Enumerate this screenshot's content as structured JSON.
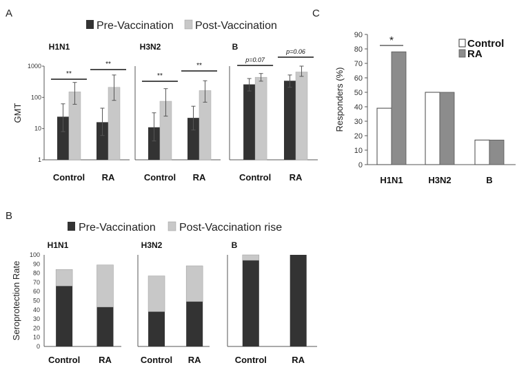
{
  "panels": {
    "a": "A",
    "b": "B",
    "c": "C"
  },
  "legend_a": {
    "pre": "Pre-Vaccination",
    "post": "Post-Vaccination"
  },
  "legend_b": {
    "pre": "Pre-Vaccination",
    "post": "Post-Vaccination rise"
  },
  "legend_c": {
    "control": "Control",
    "ra": "RA"
  },
  "colors": {
    "dark": "#333333",
    "light": "#c8c8c8",
    "white": "#ffffff",
    "gray": "#8c8c8c"
  },
  "chart_data": [
    {
      "id": "A",
      "type": "bar",
      "log_scale": true,
      "ylabel": "GMT",
      "ylim": [
        1,
        1000
      ],
      "yticks": [
        "1",
        "10",
        "100",
        "1000"
      ],
      "series_names": [
        "Pre-Vaccination",
        "Post-Vaccination"
      ],
      "groups": [
        {
          "title": "H1N1",
          "categories": [
            "Control",
            "RA"
          ],
          "pre": [
            24,
            16
          ],
          "pre_err": [
            [
              8,
              62
            ],
            [
              6,
              45
            ]
          ],
          "post": [
            150,
            210
          ],
          "post_err": [
            [
              60,
              300
            ],
            [
              80,
              520
            ]
          ],
          "annotations": [
            {
              "cat": 0,
              "text": "**"
            },
            {
              "cat": 1,
              "text": "**"
            }
          ]
        },
        {
          "title": "H3N2",
          "categories": [
            "Control",
            "RA"
          ],
          "pre": [
            11,
            22
          ],
          "pre_err": [
            [
              4,
              32
            ],
            [
              9,
              52
            ]
          ],
          "post": [
            75,
            165
          ],
          "post_err": [
            [
              25,
              190
            ],
            [
              70,
              340
            ]
          ],
          "annotations": [
            {
              "cat": 0,
              "text": "**"
            },
            {
              "cat": 1,
              "text": "**"
            }
          ]
        },
        {
          "title": "B",
          "categories": [
            "Control",
            "RA"
          ],
          "pre": [
            260,
            340
          ],
          "pre_err": [
            [
              160,
              400
            ],
            [
              210,
              520
            ]
          ],
          "post": [
            440,
            650
          ],
          "post_err": [
            [
              330,
              580
            ],
            [
              470,
              1000
            ]
          ],
          "annotations": [
            {
              "cat": 0,
              "text": "p=0.07"
            },
            {
              "cat": 1,
              "text": "p=0.06"
            }
          ]
        }
      ]
    },
    {
      "id": "B",
      "type": "bar",
      "stacked": true,
      "ylabel": "Seroprotection Rate",
      "ylim": [
        0,
        100
      ],
      "yticks": [
        "0",
        "10",
        "20",
        "30",
        "40",
        "50",
        "60",
        "70",
        "80",
        "90",
        "100"
      ],
      "series_names": [
        "Pre-Vaccination",
        "Post-Vaccination rise"
      ],
      "groups": [
        {
          "title": "H1N1",
          "categories": [
            "Control",
            "RA"
          ],
          "pre": [
            66,
            43
          ],
          "rise": [
            18,
            46
          ]
        },
        {
          "title": "H3N2",
          "categories": [
            "Control",
            "RA"
          ],
          "pre": [
            38,
            49
          ],
          "rise": [
            39,
            39
          ]
        },
        {
          "title": "B",
          "categories": [
            "Control",
            "RA"
          ],
          "pre": [
            94,
            100
          ],
          "rise": [
            6,
            0
          ]
        }
      ]
    },
    {
      "id": "C",
      "type": "bar",
      "ylabel": "Responders (%)",
      "ylim": [
        0,
        90
      ],
      "yticks": [
        "0",
        "10",
        "20",
        "30",
        "40",
        "50",
        "60",
        "70",
        "80",
        "90"
      ],
      "categories": [
        "H1N1",
        "H3N2",
        "B"
      ],
      "series": [
        {
          "name": "Control",
          "values": [
            39,
            50,
            17
          ]
        },
        {
          "name": "RA",
          "values": [
            78,
            50,
            17
          ]
        }
      ],
      "annotations": [
        {
          "cat": 0,
          "text": "*"
        }
      ]
    }
  ]
}
